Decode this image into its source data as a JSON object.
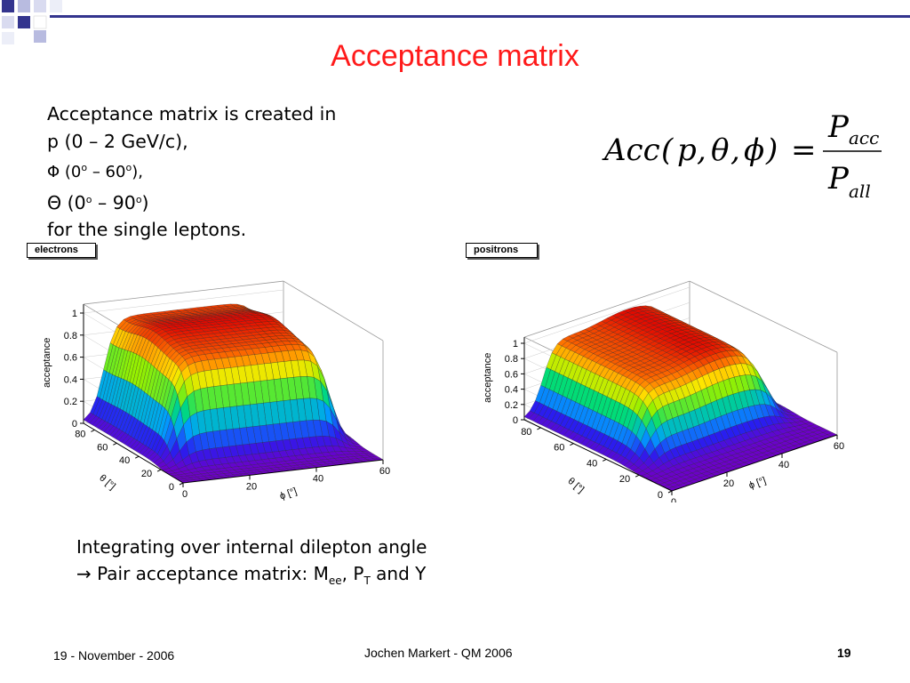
{
  "slide": {
    "title": "Acceptance matrix",
    "accent_color": "#33348e",
    "title_color": "#ff1a1a"
  },
  "intro": {
    "line1": "Acceptance matrix is created in",
    "line2": "p (0 – 2 GeV/c),",
    "phi_prefix": "Φ (0",
    "phi_deg1": "o",
    "phi_mid": " – 60",
    "phi_deg2": "o",
    "phi_suffix": "),",
    "theta_prefix": "Θ (0",
    "theta_deg1": "o",
    "theta_mid": " – 90",
    "theta_deg2": "o",
    "theta_suffix": ")",
    "line5": "for the single leptons."
  },
  "formula": {
    "lhs_acc": "Acc",
    "lhs_open": "(",
    "lhs_p": "p",
    "lhs_comma1": ",",
    "lhs_theta": "θ",
    "lhs_comma2": ",",
    "lhs_phi": "ϕ",
    "lhs_close": ")",
    "equals": "=",
    "num_P": "P",
    "num_sub": "acc",
    "den_P": "P",
    "den_sub": "all"
  },
  "plots": [
    {
      "label": "electrons",
      "z_axis_title": "acceptance",
      "z_ticks": [
        "0",
        "0.2",
        "0.4",
        "0.6",
        "0.8",
        "1"
      ],
      "theta_title": "θ [°]",
      "theta_ticks": [
        "0",
        "20",
        "40",
        "60",
        "80"
      ],
      "phi_title": "ϕ [°]",
      "phi_ticks": [
        "0",
        "20",
        "40",
        "60"
      ]
    },
    {
      "label": "positrons",
      "z_axis_title": "acceptance",
      "z_ticks": [
        "0",
        "0.2",
        "0.4",
        "0.6",
        "0.8",
        "1"
      ],
      "theta_title": "θ [°]",
      "theta_ticks": [
        "0",
        "20",
        "40",
        "60",
        "80"
      ],
      "phi_title": "ϕ [°]",
      "phi_ticks": [
        "0",
        "20",
        "40",
        "60"
      ]
    }
  ],
  "outro": {
    "line1": "Integrating over internal dilepton angle",
    "arrow": "→",
    "line2_text": " Pair acceptance matrix: M",
    "sub_ee": "ee",
    "sep": ", P",
    "sub_T": "T",
    "tail": " and Y"
  },
  "footer": {
    "date": "19 - November - 2006",
    "author": "Jochen Markert - QM 2006",
    "page": "19"
  }
}
